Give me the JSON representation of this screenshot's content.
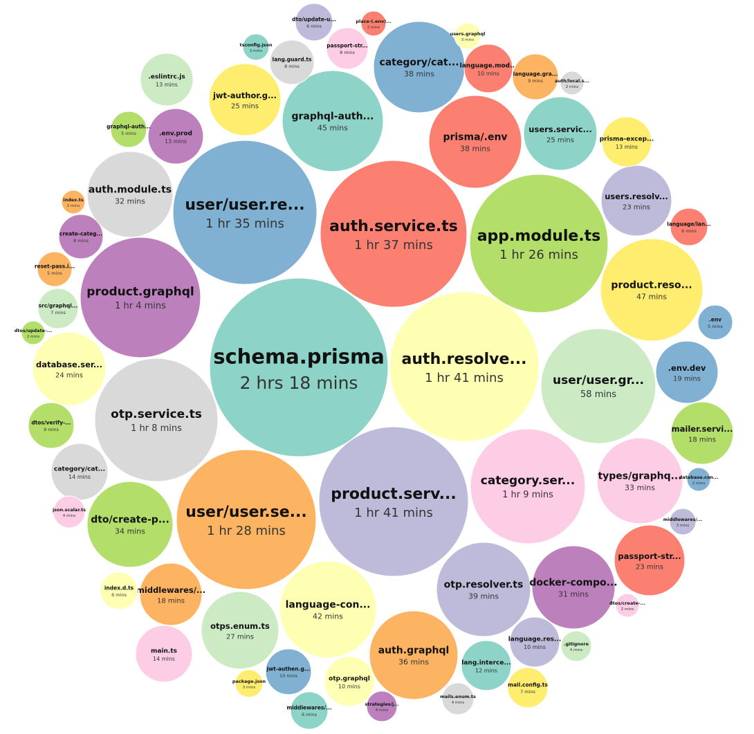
{
  "chart_data": {
    "type": "bubble",
    "unit": "mins",
    "palette": [
      "#8dd3c7",
      "#ffffb3",
      "#bebada",
      "#fb8072",
      "#80b1d3",
      "#fdb462",
      "#b3de69",
      "#fccde5",
      "#d9d9d9",
      "#bc80bd",
      "#ccebc5",
      "#ffed6f"
    ],
    "items": [
      {
        "label": "schema.prisma",
        "value_text": "2 hrs 18 mins",
        "minutes": 138,
        "color": "#8dd3c7"
      },
      {
        "label": "auth.resolve...",
        "value_text": "1 hr 41 mins",
        "minutes": 101,
        "color": "#ffffb3"
      },
      {
        "label": "product.serv...",
        "value_text": "1 hr 41 mins",
        "minutes": 101,
        "color": "#bebada"
      },
      {
        "label": "auth.service.ts",
        "value_text": "1 hr 37 mins",
        "minutes": 97,
        "color": "#fb8072"
      },
      {
        "label": "user/user.re...",
        "value_text": "1 hr 35 mins",
        "minutes": 95,
        "color": "#80b1d3"
      },
      {
        "label": "user/user.se...",
        "value_text": "1 hr 28 mins",
        "minutes": 88,
        "color": "#fdb462"
      },
      {
        "label": "app.module.ts",
        "value_text": "1 hr 26 mins",
        "minutes": 86,
        "color": "#b3de69"
      },
      {
        "label": "category.ser...",
        "value_text": "1 hr 9 mins",
        "minutes": 69,
        "color": "#fccde5"
      },
      {
        "label": "otp.service.ts",
        "value_text": "1 hr 8 mins",
        "minutes": 68,
        "color": "#d9d9d9"
      },
      {
        "label": "product.graphql",
        "value_text": "1 hr 4 mins",
        "minutes": 64,
        "color": "#bc80bd"
      },
      {
        "label": "user/user.gr...",
        "value_text": "58 mins",
        "minutes": 58,
        "color": "#ccebc5"
      },
      {
        "label": "product.reso...",
        "value_text": "47 mins",
        "minutes": 47,
        "color": "#ffed6f"
      },
      {
        "label": "graphql-auth...",
        "value_text": "45 mins",
        "minutes": 45,
        "color": "#8dd3c7"
      },
      {
        "label": "language-con...",
        "value_text": "42 mins",
        "minutes": 42,
        "color": "#ffffb3"
      },
      {
        "label": "otp.resolver.ts",
        "value_text": "39 mins",
        "minutes": 39,
        "color": "#bebada"
      },
      {
        "label": "prisma/.env",
        "value_text": "38 mins",
        "minutes": 38,
        "color": "#fb8072"
      },
      {
        "label": "category/cat...",
        "value_text": "38 mins",
        "minutes": 38,
        "color": "#80b1d3"
      },
      {
        "label": "auth.graphql",
        "value_text": "36 mins",
        "minutes": 36,
        "color": "#fdb462"
      },
      {
        "label": "dto/create-p...",
        "value_text": "34 mins",
        "minutes": 34,
        "color": "#b3de69"
      },
      {
        "label": "types/graphq...",
        "value_text": "33 mins",
        "minutes": 33,
        "color": "#fccde5"
      },
      {
        "label": "auth.module.ts",
        "value_text": "32 mins",
        "minutes": 32,
        "color": "#d9d9d9"
      },
      {
        "label": "docker-compo...",
        "value_text": "31 mins",
        "minutes": 31,
        "color": "#bc80bd"
      },
      {
        "label": "otps.enum.ts",
        "value_text": "27 mins",
        "minutes": 27,
        "color": "#ccebc5"
      },
      {
        "label": "jwt-author.g...",
        "value_text": "25 mins",
        "minutes": 25,
        "color": "#ffed6f"
      },
      {
        "label": "users.servic...",
        "value_text": "25 mins",
        "minutes": 25,
        "color": "#8dd3c7"
      },
      {
        "label": "database.ser...",
        "value_text": "24 mins",
        "minutes": 24,
        "color": "#ffffb3"
      },
      {
        "label": "users.resolv...",
        "value_text": "23 mins",
        "minutes": 23,
        "color": "#bebada"
      },
      {
        "label": "passport-str...",
        "value_text": "23 mins",
        "minutes": 23,
        "color": "#fb8072"
      },
      {
        "label": ".env.dev",
        "value_text": "19 mins",
        "minutes": 19,
        "color": "#80b1d3"
      },
      {
        "label": "middlewares/...",
        "value_text": "18 mins",
        "minutes": 18,
        "color": "#fdb462"
      },
      {
        "label": "mailer.servi...",
        "value_text": "18 mins",
        "minutes": 18,
        "color": "#b3de69"
      },
      {
        "label": "main.ts",
        "value_text": "14 mins",
        "minutes": 14,
        "color": "#fccde5"
      },
      {
        "label": "category/cat...",
        "value_text": "14 mins",
        "minutes": 14,
        "color": "#d9d9d9"
      },
      {
        "label": ".env.prod",
        "value_text": "13 mins",
        "minutes": 13,
        "color": "#bc80bd"
      },
      {
        "label": ".eslintrc.js",
        "value_text": "13 mins",
        "minutes": 13,
        "color": "#ccebc5"
      },
      {
        "label": "prisma-excep...",
        "value_text": "13 mins",
        "minutes": 13,
        "color": "#ffed6f"
      },
      {
        "label": "lang.interce...",
        "value_text": "12 mins",
        "minutes": 12,
        "color": "#8dd3c7"
      },
      {
        "label": "otp.graphql",
        "value_text": "10 mins",
        "minutes": 10,
        "color": "#ffffb3"
      },
      {
        "label": "language.res...",
        "value_text": "10 mins",
        "minutes": 10,
        "color": "#bebada"
      },
      {
        "label": "language.mod...",
        "value_text": "10 mins",
        "minutes": 10,
        "color": "#fb8072"
      },
      {
        "label": "jwt-authen.g...",
        "value_text": "10 mins",
        "minutes": 10,
        "color": "#80b1d3"
      },
      {
        "label": "language.gra...",
        "value_text": "9 mins",
        "minutes": 9,
        "color": "#fdb462"
      },
      {
        "label": "dtos/verify-...",
        "value_text": "9 mins",
        "minutes": 9,
        "color": "#b3de69"
      },
      {
        "label": "passport-str...",
        "value_text": "8 mins",
        "minutes": 8,
        "color": "#fccde5"
      },
      {
        "label": "lang.guard.ts",
        "value_text": "8 mins",
        "minutes": 8,
        "color": "#d9d9d9"
      },
      {
        "label": "create-categ...",
        "value_text": "8 mins",
        "minutes": 8,
        "color": "#bc80bd"
      },
      {
        "label": "src/graphql...",
        "value_text": "7 mins",
        "minutes": 7,
        "color": "#ccebc5"
      },
      {
        "label": "mail.config.ts",
        "value_text": "7 mins",
        "minutes": 7,
        "color": "#ffed6f"
      },
      {
        "label": "middlewares/...",
        "value_text": "6 mins",
        "minutes": 6,
        "color": "#8dd3c7"
      },
      {
        "label": "index.d.ts",
        "value_text": "6 mins",
        "minutes": 6,
        "color": "#ffffb3"
      },
      {
        "label": "dto/update-u...",
        "value_text": "6 mins",
        "minutes": 6,
        "color": "#bebada"
      },
      {
        "label": "language/lan...",
        "value_text": "6 mins",
        "minutes": 6,
        "color": "#fb8072"
      },
      {
        "label": ".env",
        "value_text": "5 mins",
        "minutes": 5,
        "color": "#80b1d3"
      },
      {
        "label": "reset-pass.i...",
        "value_text": "5 mins",
        "minutes": 5,
        "color": "#fdb462"
      },
      {
        "label": "graphql-auth...",
        "value_text": "5 mins",
        "minutes": 5,
        "color": "#b3de69"
      },
      {
        "label": "json.scalar.ts",
        "value_text": "4 mins",
        "minutes": 4,
        "color": "#fccde5"
      },
      {
        "label": "mails.enum.ts",
        "value_text": "4 mins",
        "minutes": 4,
        "color": "#d9d9d9"
      },
      {
        "label": "strategies/j...",
        "value_text": "4 mins",
        "minutes": 4,
        "color": "#bc80bd"
      },
      {
        "label": ".gitignore",
        "value_text": "4 mins",
        "minutes": 4,
        "color": "#ccebc5"
      },
      {
        "label": "users.graphql",
        "value_text": "3 mins",
        "minutes": 3,
        "color": "#ffffb3"
      },
      {
        "label": "tsconfig.json",
        "value_text": "3 mins",
        "minutes": 3,
        "color": "#8dd3c7"
      },
      {
        "label": "package.json",
        "value_text": "3 mins",
        "minutes": 3,
        "color": "#ffed6f"
      },
      {
        "label": "middlewares/...",
        "value_text": "3 mins",
        "minutes": 3,
        "color": "#bebada"
      },
      {
        "label": "place-(.env)...",
        "value_text": "2 mins",
        "minutes": 2,
        "color": "#fb8072"
      },
      {
        "label": "auth/local.s...",
        "value_text": "2 mins",
        "minutes": 2,
        "color": "#d9d9d9"
      },
      {
        "label": "index.ts",
        "value_text": "2 mins",
        "minutes": 2,
        "color": "#fdb462"
      },
      {
        "label": "dtos/update-...",
        "value_text": "2 mins",
        "minutes": 2,
        "color": "#b3de69"
      },
      {
        "label": "database.con...",
        "value_text": "2 mins",
        "minutes": 2,
        "color": "#80b1d3"
      },
      {
        "label": "dtos/create-...",
        "value_text": "2 mins",
        "minutes": 2,
        "color": "#fccde5"
      }
    ]
  }
}
